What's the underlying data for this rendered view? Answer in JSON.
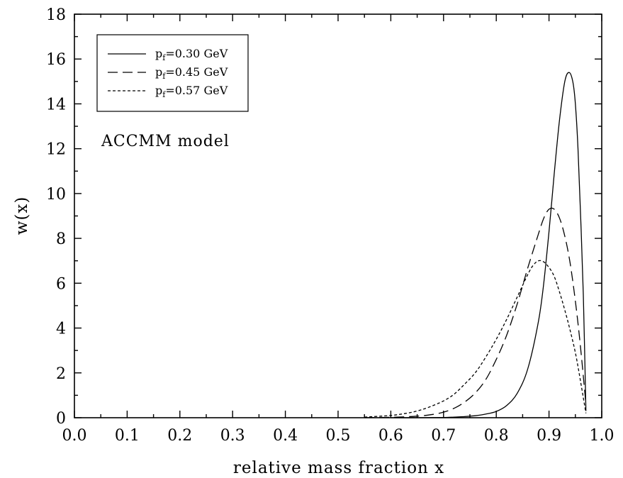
{
  "chart_data": {
    "type": "line",
    "xlabel": "relative mass fraction x",
    "ylabel": "w(x)",
    "xlim": [
      0.0,
      1.0
    ],
    "ylim": [
      0,
      18
    ],
    "x_ticks": [
      "0.0",
      "0.1",
      "0.2",
      "0.3",
      "0.4",
      "0.5",
      "0.6",
      "0.7",
      "0.8",
      "0.9",
      "1.0"
    ],
    "y_ticks": [
      "0",
      "2",
      "4",
      "6",
      "8",
      "10",
      "12",
      "14",
      "16",
      "18"
    ],
    "annotation": "ACCMM model",
    "legend_position": "top-left",
    "grid": false,
    "series": [
      {
        "name": "p_f=0.30 GeV",
        "legend_sym": "p",
        "legend_sub": "f",
        "legend_rest": "=0.30 GeV",
        "style": "solid",
        "x": [
          0.6,
          0.65,
          0.7,
          0.72,
          0.74,
          0.76,
          0.78,
          0.8,
          0.82,
          0.84,
          0.86,
          0.88,
          0.89,
          0.9,
          0.91,
          0.92,
          0.93,
          0.938,
          0.945,
          0.95,
          0.955,
          0.96,
          0.965,
          0.97
        ],
        "y": [
          0.0,
          0.0,
          0.01,
          0.03,
          0.05,
          0.09,
          0.16,
          0.28,
          0.55,
          1.1,
          2.2,
          4.3,
          6.0,
          8.3,
          10.9,
          13.3,
          15.0,
          15.4,
          15.0,
          14.0,
          12.0,
          9.0,
          5.5,
          0.3
        ]
      },
      {
        "name": "p_f=0.45 GeV",
        "legend_sym": "p",
        "legend_sub": "f",
        "legend_rest": "=0.45 GeV",
        "style": "dashed",
        "x": [
          0.55,
          0.6,
          0.65,
          0.68,
          0.7,
          0.72,
          0.74,
          0.76,
          0.78,
          0.8,
          0.82,
          0.84,
          0.86,
          0.88,
          0.89,
          0.9,
          0.91,
          0.92,
          0.93,
          0.94,
          0.95,
          0.96,
          0.97
        ],
        "y": [
          0.0,
          0.02,
          0.07,
          0.15,
          0.25,
          0.42,
          0.7,
          1.1,
          1.7,
          2.6,
          3.7,
          5.1,
          6.7,
          8.2,
          8.9,
          9.3,
          9.3,
          8.9,
          8.1,
          6.9,
          5.2,
          3.1,
          0.6
        ]
      },
      {
        "name": "p_f=0.57 GeV",
        "legend_sym": "p",
        "legend_sub": "f",
        "legend_rest": "=0.57 GeV",
        "style": "dotted",
        "x": [
          0.55,
          0.6,
          0.63,
          0.65,
          0.67,
          0.7,
          0.72,
          0.74,
          0.76,
          0.78,
          0.8,
          0.82,
          0.84,
          0.86,
          0.87,
          0.88,
          0.89,
          0.9,
          0.91,
          0.92,
          0.93,
          0.94,
          0.95,
          0.96,
          0.97
        ],
        "y": [
          0.03,
          0.1,
          0.2,
          0.3,
          0.45,
          0.75,
          1.05,
          1.5,
          2.0,
          2.7,
          3.5,
          4.4,
          5.4,
          6.4,
          6.8,
          7.0,
          6.95,
          6.7,
          6.3,
          5.6,
          4.8,
          3.9,
          2.9,
          1.6,
          0.2
        ]
      }
    ]
  }
}
